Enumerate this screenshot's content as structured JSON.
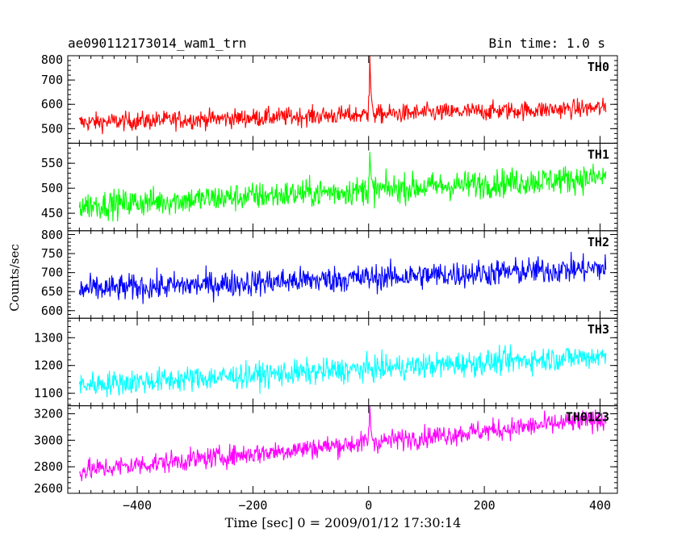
{
  "header": {
    "title": "ae090112173014_wam1_trn",
    "bin_time": "Bin time: 1.0 s"
  },
  "axes": {
    "xlabel": "Time [sec] 0 = 2009/01/12 17:30:14",
    "ylabel": "Counts/sec"
  },
  "chart_data": {
    "type": "line",
    "x_range": [
      -500,
      410
    ],
    "xlim": [
      -520,
      430
    ],
    "x_ticks": [
      -400,
      -200,
      0,
      200,
      400
    ],
    "x_tick_labels": [
      "−400",
      "−200",
      "0",
      "200",
      "400"
    ],
    "grid": false,
    "panels": [
      {
        "name": "TH0",
        "color": "#ff0000",
        "ylim": [
          440,
          800
        ],
        "y_ticks": [
          500,
          600,
          700,
          800
        ],
        "baseline_start": 525,
        "baseline_end": 585,
        "noise": 38,
        "spike": {
          "x": 2,
          "peak": 800
        }
      },
      {
        "name": "TH1",
        "color": "#00ff00",
        "ylim": [
          415,
          590
        ],
        "y_ticks": [
          450,
          500,
          550
        ],
        "baseline_start": 465,
        "baseline_end": 522,
        "noise": 28,
        "spike": {
          "x": 2,
          "peak": 575
        }
      },
      {
        "name": "TH2",
        "color": "#0000ff",
        "ylim": [
          580,
          810
        ],
        "y_ticks": [
          600,
          650,
          700,
          750,
          800
        ],
        "baseline_start": 655,
        "baseline_end": 712,
        "noise": 35,
        "spike": null
      },
      {
        "name": "TH3",
        "color": "#00ffff",
        "ylim": [
          1055,
          1370
        ],
        "y_ticks": [
          1100,
          1200,
          1300
        ],
        "baseline_start": 1130,
        "baseline_end": 1235,
        "noise": 45,
        "spike": null
      },
      {
        "name": "TH0123",
        "color": "#ff00ff",
        "ylim": [
          2600,
          3260
        ],
        "y_ticks": [
          2600,
          2800,
          3000,
          3200
        ],
        "baseline_start": 2770,
        "baseline_end": 3160,
        "noise": 80,
        "spike": {
          "x": 2,
          "peak": 3260
        }
      }
    ]
  }
}
